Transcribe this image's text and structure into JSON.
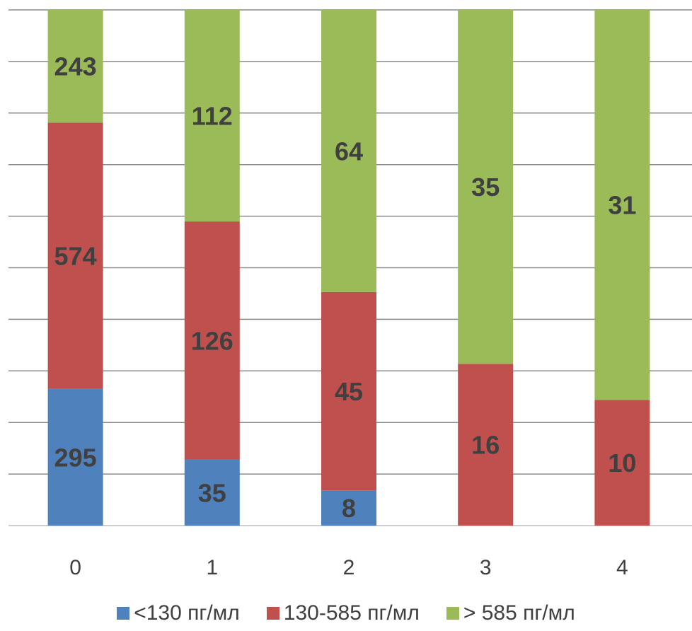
{
  "chart_data": {
    "type": "bar",
    "stacked": "percent",
    "categories": [
      "0",
      "1",
      "2",
      "3",
      "4"
    ],
    "series": [
      {
        "name": "<130 пг/мл",
        "color": "#4F81BD",
        "values": [
          295,
          35,
          8,
          0,
          0
        ]
      },
      {
        "name": "130-585 пг/мл",
        "color": "#C0504D",
        "values": [
          574,
          126,
          45,
          16,
          10
        ]
      },
      {
        "name": "> 585 пг/мл",
        "color": "#9BBB59",
        "values": [
          243,
          112,
          64,
          35,
          31
        ]
      }
    ],
    "ylim": [
      0,
      1
    ],
    "grid": true,
    "legend": "bottom"
  }
}
